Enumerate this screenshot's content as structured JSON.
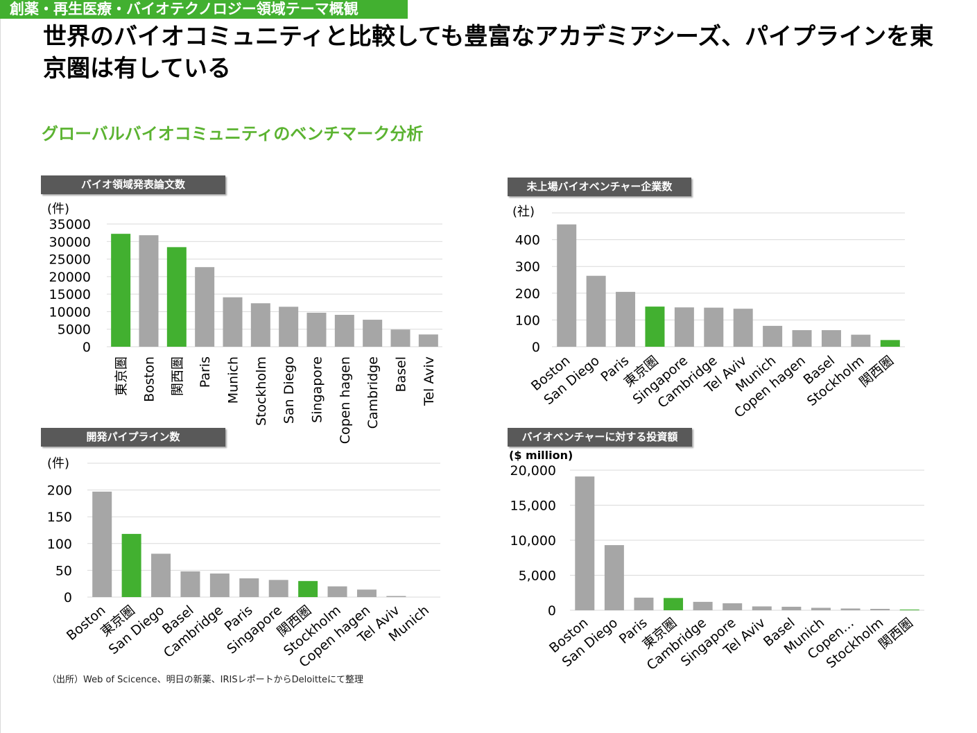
{
  "header": {
    "category": "創薬・再生医療・バイオテクノロジー領域テーマ概観",
    "title": "世界のバイオコミュニティと比較しても豊富なアカデミアシーズ、パイプラインを東京圏は有している",
    "subtitle": "グローバルバイオコミュニティのベンチマーク分析"
  },
  "colors": {
    "highlight": "#42b030",
    "bar": "#a6a6a6",
    "grid": "#d9d9d9",
    "label_bg": "#595959"
  },
  "source": "（出所）Web of Scicence、明日の新薬、IRISレポートからDeloitteにて整理",
  "chart_data": [
    {
      "type": "bar",
      "title": "バイオ領域発表論文数",
      "unit": "(件)",
      "categories": [
        "東京圏",
        "Boston",
        "関西圏",
        "Paris",
        "Munich",
        "Stockholm",
        "San Diego",
        "Singapore",
        "Copen hagen",
        "Cambridge",
        "Basel",
        "Tel Aviv"
      ],
      "values": [
        32200,
        31800,
        28400,
        22700,
        14100,
        12400,
        11400,
        9700,
        9100,
        7700,
        4900,
        3500
      ],
      "highlight": [
        "東京圏",
        "関西圏"
      ],
      "ylim": [
        0,
        35000
      ],
      "yticks": [
        0,
        5000,
        10000,
        15000,
        20000,
        25000,
        30000,
        35000
      ],
      "ytick_labels": [
        "0",
        "5000",
        "10000",
        "15000",
        "20000",
        "25000",
        "30000",
        "35000"
      ],
      "label_style": "vertical"
    },
    {
      "type": "bar",
      "title": "未上場バイオベンチャー企業数",
      "unit": "(社)",
      "categories": [
        "Boston",
        "San Diego",
        "Paris",
        "東京圏",
        "Singapore",
        "Cambridge",
        "Tel Aviv",
        "Munich",
        "Copen hagen",
        "Basel",
        "Stockholm",
        "関西圏"
      ],
      "values": [
        457,
        265,
        205,
        150,
        147,
        146,
        142,
        78,
        62,
        62,
        45,
        25
      ],
      "highlight": [
        "東京圏",
        "関西圏"
      ],
      "ylim": [
        0,
        500
      ],
      "yticks": [
        0,
        100,
        200,
        300,
        400,
        500
      ],
      "ytick_labels": [
        "0",
        "100",
        "200",
        "300",
        "400",
        ""
      ],
      "label_style": "diagonal"
    },
    {
      "type": "bar",
      "title": "開発パイプライン数",
      "unit": "(件)",
      "categories": [
        "Boston",
        "東京圏",
        "San Diego",
        "Basel",
        "Cambridge",
        "Paris",
        "Singapore",
        "関西圏",
        "Stockholm",
        "Copen hagen",
        "Tel Aviv",
        "Munich"
      ],
      "values": [
        197,
        118,
        81,
        48,
        44,
        35,
        32,
        30,
        20,
        14,
        2,
        0
      ],
      "highlight": [
        "東京圏",
        "関西圏"
      ],
      "ylim": [
        0,
        250
      ],
      "yticks": [
        0,
        50,
        100,
        150,
        200,
        250
      ],
      "ytick_labels": [
        "0",
        "50",
        "100",
        "150",
        "200",
        ""
      ],
      "label_style": "diagonal"
    },
    {
      "type": "bar",
      "title": "バイオベンチャーに対する投資額",
      "unit": "($ million)",
      "categories": [
        "Boston",
        "San Diego",
        "Paris",
        "東京圏",
        "Cambridge",
        "Singapore",
        "Tel Aviv",
        "Basel",
        "Munich",
        "Copen…",
        "Stockholm",
        "関西圏"
      ],
      "values": [
        19100,
        9300,
        1800,
        1750,
        1200,
        1000,
        550,
        500,
        350,
        250,
        200,
        50
      ],
      "highlight": [
        "東京圏",
        "関西圏"
      ],
      "ylim": [
        0,
        20000
      ],
      "yticks": [
        0,
        5000,
        10000,
        15000,
        20000
      ],
      "ytick_labels": [
        "0",
        "5,000",
        "10,000",
        "15,000",
        "20,000"
      ],
      "label_style": "diagonal"
    }
  ]
}
